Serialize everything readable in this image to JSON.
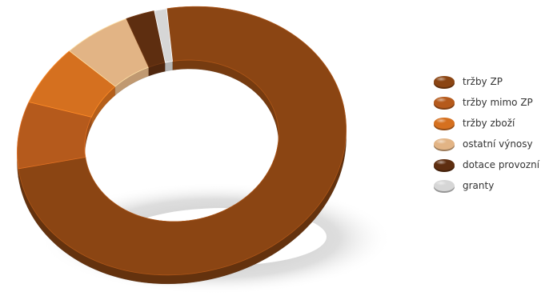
{
  "chart_data": {
    "type": "pie",
    "style": "3d-donut",
    "grid": false,
    "legend_placement": "right",
    "slices": [
      {
        "label": "tržby ZP",
        "value": 74.5,
        "color": "#8b4513"
      },
      {
        "label": "tržby mimo ZP",
        "value": 8.0,
        "color": "#b55a1c"
      },
      {
        "label": "tržby zboží",
        "value": 7.0,
        "color": "#d5701f"
      },
      {
        "label": "ostatní výnosy",
        "value": 6.5,
        "color": "#e2b485"
      },
      {
        "label": "dotace provozní",
        "value": 2.8,
        "color": "#5e2e10"
      },
      {
        "label": "granty",
        "value": 1.2,
        "color": "#d6d6d6"
      }
    ]
  }
}
